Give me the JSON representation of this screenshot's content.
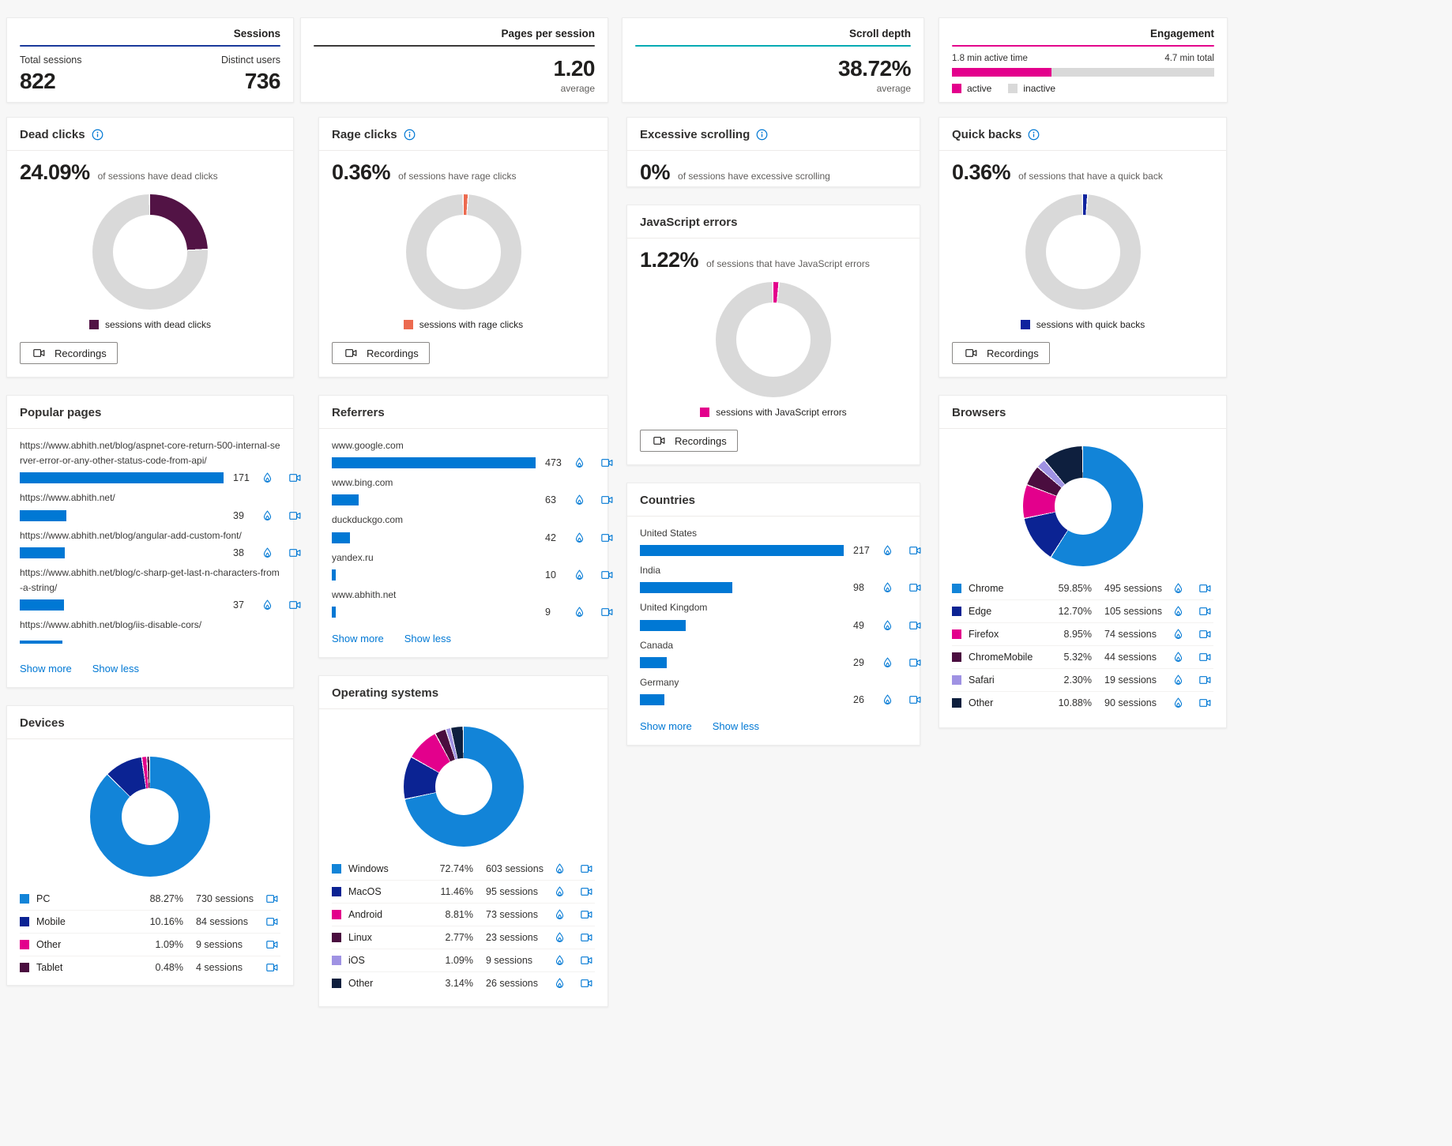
{
  "top": {
    "sessions": {
      "title": "Sessions",
      "accent": "#1b3a9b",
      "left_label": "Total sessions",
      "left_value": "822",
      "right_label": "Distinct users",
      "right_value": "736"
    },
    "pages": {
      "title": "Pages per session",
      "accent": "#3b3a39",
      "value": "1.20",
      "sub": "average"
    },
    "scroll": {
      "title": "Scroll depth",
      "accent": "#00abb3",
      "value": "38.72%",
      "sub": "average"
    },
    "engagement": {
      "title": "Engagement",
      "accent": "#e3008c",
      "active_label": "1.8 min active time",
      "total_label": "4.7 min total",
      "active_pct": 38,
      "active_color": "#e3008c",
      "inactive_color": "#d9d9d9",
      "legend_active": "active",
      "legend_inactive": "inactive"
    }
  },
  "cards": {
    "dead_clicks": {
      "title": "Dead clicks",
      "value": "24.09%",
      "desc": "of sessions have dead clicks",
      "color": "#521345",
      "legend": "sessions with dead clicks",
      "button": "Recordings",
      "donut": {
        "slices": [
          {
            "pct": 24.09,
            "color": "#521345"
          }
        ],
        "rest": "#d9d9d9",
        "gap": 1.2,
        "min_deg": 4
      }
    },
    "rage_clicks": {
      "title": "Rage clicks",
      "value": "0.36%",
      "desc": "of sessions have rage clicks",
      "color": "#ec6a4f",
      "legend": "sessions with rage clicks",
      "button": "Recordings",
      "donut": {
        "slices": [
          {
            "pct": 0.36,
            "color": "#ec6a4f"
          }
        ],
        "rest": "#d9d9d9",
        "gap": 1.2,
        "min_deg": 4
      }
    },
    "excessive": {
      "title": "Excessive scrolling",
      "value": "0%",
      "desc": "of sessions have excessive scrolling"
    },
    "js_errors": {
      "title": "JavaScript errors",
      "value": "1.22%",
      "desc": "of sessions that have JavaScript errors",
      "color": "#e3008c",
      "legend": "sessions with JavaScript errors",
      "button": "Recordings",
      "donut": {
        "slices": [
          {
            "pct": 1.22,
            "color": "#e3008c"
          }
        ],
        "rest": "#d9d9d9",
        "gap": 1.2,
        "min_deg": 5
      }
    },
    "quick_backs": {
      "title": "Quick backs",
      "value": "0.36%",
      "desc": "of sessions that have a quick back",
      "color": "#10239e",
      "legend": "sessions with quick backs",
      "button": "Recordings",
      "donut": {
        "slices": [
          {
            "pct": 0.36,
            "color": "#10239e"
          }
        ],
        "rest": "#d9d9d9",
        "gap": 1.2,
        "min_deg": 4
      }
    },
    "popular_pages": {
      "title": "Popular pages",
      "show_more": "Show more",
      "show_less": "Show less",
      "max": 171,
      "rows": [
        {
          "label": "https://www.abhith.net/blog/aspnet-core-return-500-internal-server-error-or-any-other-status-code-from-api/",
          "value": 171,
          "count": "171"
        },
        {
          "label": "https://www.abhith.net/",
          "value": 39,
          "count": "39"
        },
        {
          "label": "https://www.abhith.net/blog/angular-add-custom-font/",
          "value": 38,
          "count": "38"
        },
        {
          "label": "https://www.abhith.net/blog/c-sharp-get-last-n-characters-from-a-string/",
          "value": 37,
          "count": "37"
        },
        {
          "label": "https://www.abhith.net/blog/iis-disable-cors/",
          "value": 36,
          "count": "",
          "mod": "clipped"
        }
      ]
    },
    "referrers": {
      "title": "Referrers",
      "show_more": "Show more",
      "show_less": "Show less",
      "max": 473,
      "rows": [
        {
          "label": "www.google.com",
          "value": 473,
          "count": "473"
        },
        {
          "label": "www.bing.com",
          "value": 63,
          "count": "63"
        },
        {
          "label": "duckduckgo.com",
          "value": 42,
          "count": "42"
        },
        {
          "label": "yandex.ru",
          "value": 10,
          "count": "10"
        },
        {
          "label": "www.abhith.net",
          "value": 9,
          "count": "9"
        }
      ]
    },
    "countries": {
      "title": "Countries",
      "show_more": "Show more",
      "show_less": "Show less",
      "max": 217,
      "rows": [
        {
          "label": "United States",
          "value": 217,
          "count": "217"
        },
        {
          "label": "India",
          "value": 98,
          "count": "98"
        },
        {
          "label": "United Kingdom",
          "value": 49,
          "count": "49"
        },
        {
          "label": "Canada",
          "value": 29,
          "count": "29"
        },
        {
          "label": "Germany",
          "value": 26,
          "count": "26"
        }
      ]
    },
    "browsers": {
      "title": "Browsers",
      "donut": {
        "gap": 1,
        "slices": [
          {
            "pct": 59.85,
            "color": "#1284d8"
          },
          {
            "pct": 12.7,
            "color": "#0b2393"
          },
          {
            "pct": 8.95,
            "color": "#e3008c"
          },
          {
            "pct": 5.32,
            "color": "#4a0d3f"
          },
          {
            "pct": 2.3,
            "color": "#9f92e3"
          },
          {
            "pct": 10.88,
            "color": "#0e1f3e"
          }
        ]
      },
      "rows": [
        {
          "name": "Chrome",
          "color": "#1284d8",
          "pct": "59.85%",
          "sessions": "495 sessions"
        },
        {
          "name": "Edge",
          "color": "#0b2393",
          "pct": "12.70%",
          "sessions": "105 sessions"
        },
        {
          "name": "Firefox",
          "color": "#e3008c",
          "pct": "8.95%",
          "sessions": "74 sessions"
        },
        {
          "name": "ChromeMobile",
          "color": "#4a0d3f",
          "pct": "5.32%",
          "sessions": "44 sessions"
        },
        {
          "name": "Safari",
          "color": "#9f92e3",
          "pct": "2.30%",
          "sessions": "19 sessions"
        },
        {
          "name": "Other",
          "color": "#0e1f3e",
          "pct": "10.88%",
          "sessions": "90 sessions"
        }
      ]
    },
    "devices": {
      "title": "Devices",
      "donut": {
        "gap": 1,
        "slices": [
          {
            "pct": 88.27,
            "color": "#1284d8"
          },
          {
            "pct": 10.16,
            "color": "#0b2393"
          },
          {
            "pct": 1.09,
            "color": "#e3008c"
          },
          {
            "pct": 0.48,
            "color": "#4a0d3f"
          }
        ]
      },
      "rows": [
        {
          "name": "PC",
          "color": "#1284d8",
          "pct": "88.27%",
          "sessions": "730 sessions"
        },
        {
          "name": "Mobile",
          "color": "#0b2393",
          "pct": "10.16%",
          "sessions": "84 sessions"
        },
        {
          "name": "Other",
          "color": "#e3008c",
          "pct": "1.09%",
          "sessions": "9 sessions"
        },
        {
          "name": "Tablet",
          "color": "#4a0d3f",
          "pct": "0.48%",
          "sessions": "4 sessions"
        }
      ]
    },
    "operating_systems": {
      "title": "Operating systems",
      "donut": {
        "gap": 1,
        "slices": [
          {
            "pct": 72.74,
            "color": "#1284d8"
          },
          {
            "pct": 11.46,
            "color": "#0b2393"
          },
          {
            "pct": 8.81,
            "color": "#e3008c"
          },
          {
            "pct": 2.77,
            "color": "#4a0d3f"
          },
          {
            "pct": 1.09,
            "color": "#9f92e3"
          },
          {
            "pct": 3.14,
            "color": "#0e1f3e"
          }
        ]
      },
      "rows": [
        {
          "name": "Windows",
          "color": "#1284d8",
          "pct": "72.74%",
          "sessions": "603 sessions"
        },
        {
          "name": "MacOS",
          "color": "#0b2393",
          "pct": "11.46%",
          "sessions": "95 sessions"
        },
        {
          "name": "Android",
          "color": "#e3008c",
          "pct": "8.81%",
          "sessions": "73 sessions"
        },
        {
          "name": "Linux",
          "color": "#4a0d3f",
          "pct": "2.77%",
          "sessions": "23 sessions"
        },
        {
          "name": "iOS",
          "color": "#9f92e3",
          "pct": "1.09%",
          "sessions": "9 sessions"
        },
        {
          "name": "Other",
          "color": "#0e1f3e",
          "pct": "3.14%",
          "sessions": "26 sessions"
        }
      ]
    }
  }
}
